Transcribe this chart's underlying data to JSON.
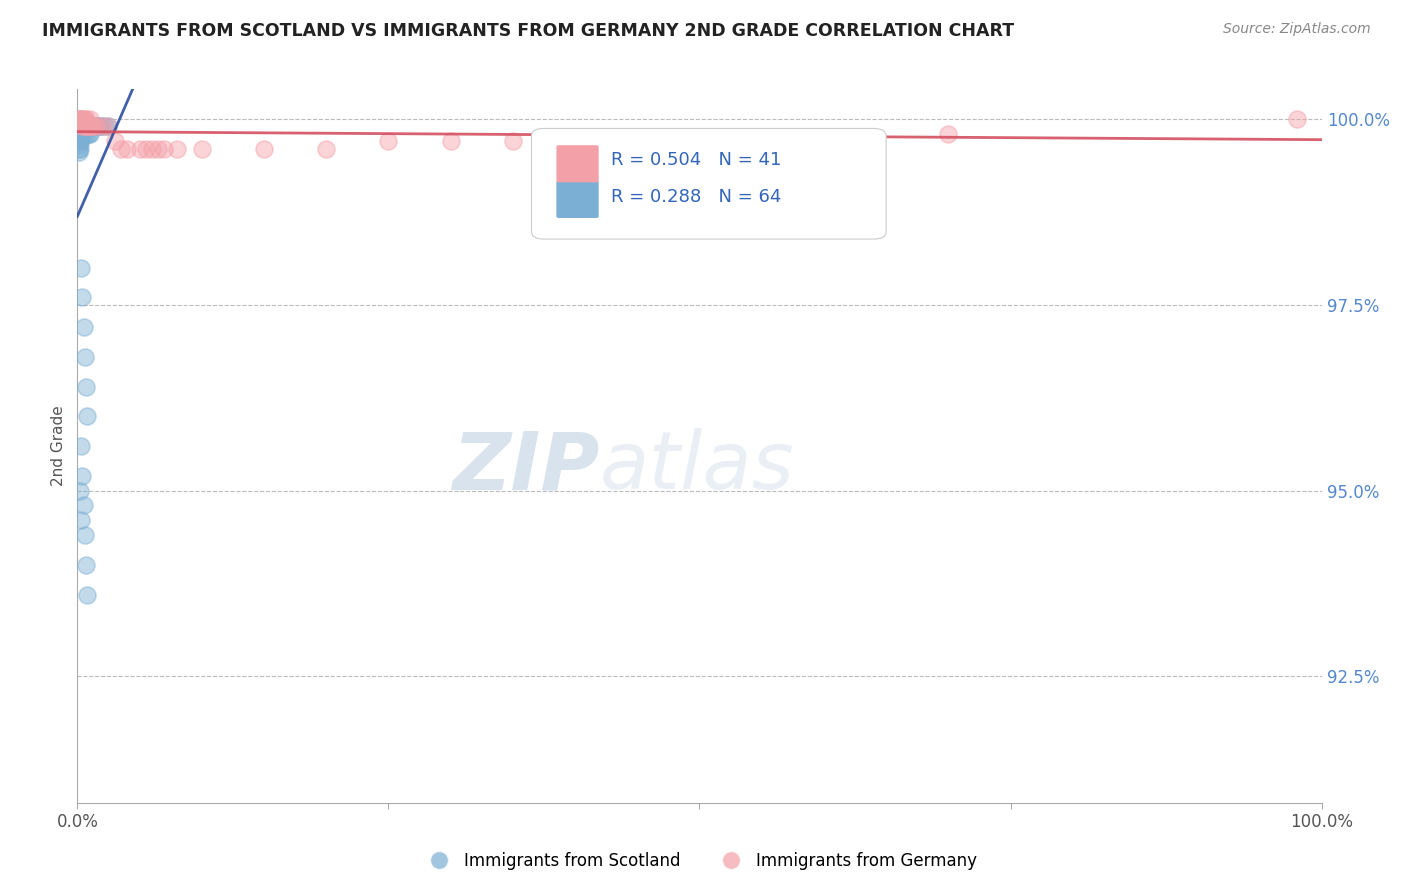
{
  "title": "IMMIGRANTS FROM SCOTLAND VS IMMIGRANTS FROM GERMANY 2ND GRADE CORRELATION CHART",
  "source_text": "Source: ZipAtlas.com",
  "ylabel": "2nd Grade",
  "x_min": 0.0,
  "x_max": 1.0,
  "y_min": 0.908,
  "y_max": 1.004,
  "yticks": [
    0.925,
    0.95,
    0.975,
    1.0
  ],
  "ytick_labels": [
    "92.5%",
    "95.0%",
    "97.5%",
    "100.0%"
  ],
  "scotland_R": 0.288,
  "scotland_N": 64,
  "germany_R": 0.504,
  "germany_N": 41,
  "scotland_color": "#7BAFD4",
  "germany_color": "#F4A0A8",
  "scotland_line_color": "#2B4FA0",
  "germany_line_color": "#D45060",
  "background_color": "#FFFFFF",
  "watermark_zip": "ZIP",
  "watermark_atlas": "atlas",
  "watermark_color": "#C8D8EC",
  "scotland_x": [
    0.001,
    0.001,
    0.001,
    0.001,
    0.001,
    0.001,
    0.001,
    0.001,
    0.001,
    0.001,
    0.002,
    0.002,
    0.002,
    0.002,
    0.002,
    0.002,
    0.002,
    0.003,
    0.003,
    0.003,
    0.003,
    0.003,
    0.004,
    0.004,
    0.004,
    0.005,
    0.005,
    0.005,
    0.006,
    0.006,
    0.006,
    0.007,
    0.007,
    0.008,
    0.008,
    0.009,
    0.009,
    0.01,
    0.01,
    0.011,
    0.012,
    0.013,
    0.014,
    0.015,
    0.016,
    0.017,
    0.018,
    0.02,
    0.022,
    0.025,
    0.003,
    0.004,
    0.005,
    0.006,
    0.007,
    0.008,
    0.003,
    0.004,
    0.005,
    0.006,
    0.007,
    0.008,
    0.002,
    0.003
  ],
  "scotland_y": [
    1.0,
    0.9995,
    0.999,
    0.9985,
    0.998,
    0.9975,
    0.997,
    0.9965,
    0.996,
    0.9955,
    0.9997,
    0.9993,
    0.999,
    0.9987,
    0.998,
    0.997,
    0.996,
    0.9995,
    0.999,
    0.9985,
    0.998,
    0.997,
    0.9995,
    0.999,
    0.998,
    0.9995,
    0.999,
    0.998,
    0.9995,
    0.999,
    0.9985,
    0.9993,
    0.9987,
    0.999,
    0.998,
    0.999,
    0.998,
    0.999,
    0.998,
    0.999,
    0.999,
    0.999,
    0.999,
    0.999,
    0.999,
    0.999,
    0.999,
    0.999,
    0.999,
    0.999,
    0.98,
    0.976,
    0.972,
    0.968,
    0.964,
    0.96,
    0.956,
    0.952,
    0.948,
    0.944,
    0.94,
    0.936,
    0.95,
    0.946
  ],
  "germany_x": [
    0.001,
    0.001,
    0.002,
    0.002,
    0.003,
    0.003,
    0.004,
    0.004,
    0.005,
    0.005,
    0.006,
    0.006,
    0.007,
    0.007,
    0.008,
    0.009,
    0.01,
    0.01,
    0.012,
    0.013,
    0.015,
    0.02,
    0.025,
    0.03,
    0.035,
    0.04,
    0.05,
    0.055,
    0.06,
    0.065,
    0.07,
    0.08,
    0.1,
    0.15,
    0.2,
    0.25,
    0.3,
    0.35,
    0.4,
    0.7,
    0.98
  ],
  "germany_y": [
    1.0,
    0.9995,
    1.0,
    0.9995,
    1.0,
    0.9995,
    1.0,
    0.999,
    1.0,
    0.999,
    1.0,
    0.999,
    1.0,
    0.999,
    0.999,
    0.999,
    1.0,
    0.999,
    0.999,
    0.999,
    0.999,
    0.999,
    0.999,
    0.997,
    0.996,
    0.996,
    0.996,
    0.996,
    0.996,
    0.996,
    0.996,
    0.996,
    0.996,
    0.996,
    0.996,
    0.997,
    0.997,
    0.997,
    0.997,
    0.998,
    1.0
  ]
}
